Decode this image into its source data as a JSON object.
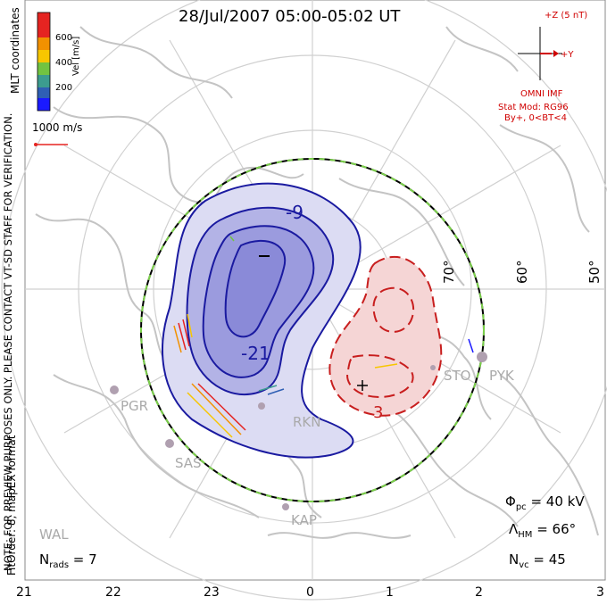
{
  "title": "28/Jul/2007 05:00-05:02 UT",
  "side_text": {
    "coords": "MLT coordinates",
    "note": "NOTE: FOR PREVIEW PURPOSES ONLY. PLEASE CONTACT VT-SD STAFF FOR VERIFICATION.",
    "fitorder": "FitOrder: 8, mapEX format"
  },
  "color_scale": {
    "label": "Vel [m/s]",
    "ticks": [
      "600",
      "400",
      "200"
    ],
    "colors": [
      "#e52421",
      "#f29100",
      "#f7c600",
      "#72c341",
      "#3c9c8f",
      "#2f5fb4",
      "#1a1aff"
    ]
  },
  "vector_ref": "1000 m/s",
  "latitude_labels": [
    "70°",
    "60°",
    "50°"
  ],
  "contour_labels": {
    "neg_outer": "-9",
    "neg_inner": "-21",
    "pos": "3"
  },
  "stations": [
    "PGR",
    "SAS",
    "RKN",
    "KAP",
    "WAL",
    "STO",
    "PYK"
  ],
  "imf": {
    "plus_z": "+Z (5 nT)",
    "plus_y": "+Y",
    "source": "OMNI IMF",
    "model": "Stat Mod: RG96",
    "condition": "By+, 0<BT<4"
  },
  "stats": {
    "phi_pc": "Φ",
    "phi_pc_sub": "pc",
    "phi_pc_val": " = 40 kV",
    "lambda_hm": "Λ",
    "lambda_hm_sub": "HM",
    "lambda_hm_val": " = 66°",
    "n_vc": "N",
    "n_vc_sub": "vc",
    "n_vc_val": " = 45",
    "n_rads": "N",
    "n_rads_sub": "rads",
    "n_rads_val": " = 7"
  },
  "mlt_labels": [
    "21",
    "22",
    "23",
    "0",
    "1",
    "2",
    "3"
  ],
  "colors": {
    "negative_contour": "#1a1aa0",
    "negative_fill": "#8a8ae0",
    "positive_contour": "#c81e1e",
    "positive_fill": "#f3caca",
    "land": "#c8c8c8",
    "grid": "#d0d0d0",
    "boundary_dash": "#7bd04a"
  }
}
